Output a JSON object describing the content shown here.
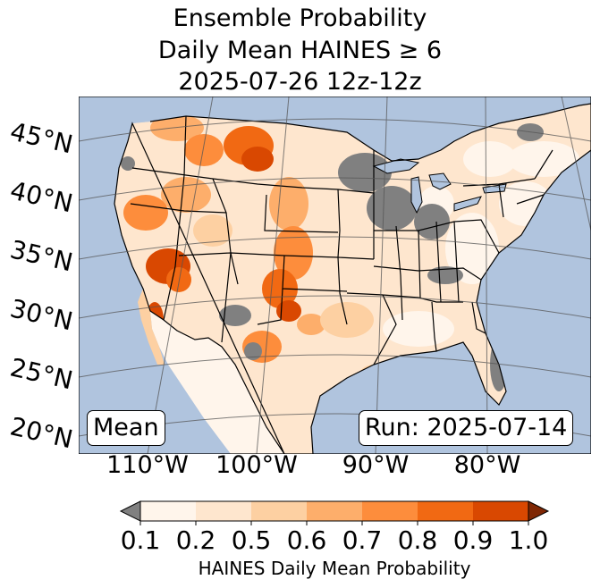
{
  "title": {
    "line1": "Ensemble Probability",
    "line2": "Daily Mean HAINES ≥ 6",
    "line3": "2025-07-26 12z-12z"
  },
  "map": {
    "left_box": "Mean",
    "right_box": "Run: 2025-07-14",
    "lat_labels": [
      "45°N",
      "40°N",
      "35°N",
      "30°N",
      "25°N",
      "20°N"
    ],
    "lon_labels": [
      "110°W",
      "100°W",
      "90°W",
      "80°W"
    ],
    "colors": {
      "ocean": "#b0c4de",
      "missing": "#808080",
      "land_low": "#fff5eb",
      "orange_1": "#fee6ce",
      "orange_2": "#fdd0a2",
      "orange_3": "#fdae6b",
      "orange_4": "#fd8d3c",
      "orange_5": "#f16913",
      "orange_6": "#d94801"
    }
  },
  "colorbar": {
    "ticks": [
      "0.1",
      "0.2",
      "0.5",
      "0.6",
      "0.7",
      "0.8",
      "0.9",
      "1.0"
    ],
    "colors": [
      "#fff5eb",
      "#fee6ce",
      "#fdd0a2",
      "#fdae6b",
      "#fd8d3c",
      "#f16913",
      "#d94801"
    ],
    "under_color": "#808080",
    "over_color": "#7f2704",
    "label": "HAINES Daily Mean Probability"
  }
}
